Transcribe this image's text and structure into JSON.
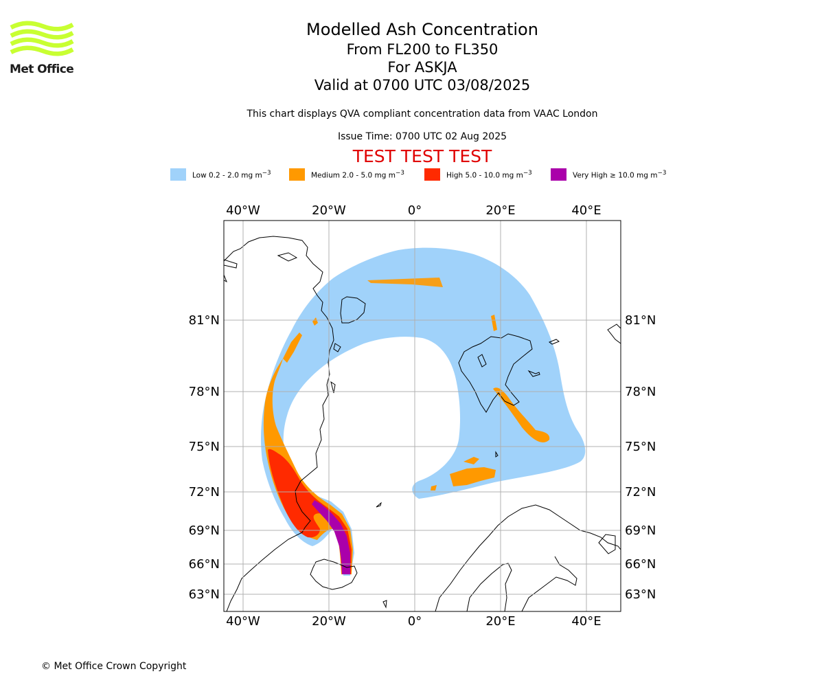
{
  "logo": {
    "text": "Met Office",
    "colors": {
      "waves": "#c8ff32",
      "text": "#1c1c1c"
    }
  },
  "header": {
    "title": "Modelled Ash Concentration",
    "flight_levels": "From FL200 to FL350",
    "volcano": "For ASKJA",
    "valid_time": "Valid at 0700 UTC 03/08/2025",
    "description": "This chart displays QVA compliant concentration data from VAAC London",
    "issue_time": "Issue Time: 0700 UTC 02 Aug 2025",
    "test_banner": "TEST TEST TEST"
  },
  "legend": [
    {
      "label": "Low 0.2 - 2.0 mg m",
      "color": "#a0d2fa"
    },
    {
      "label": "Medium 2.0 - 5.0 mg m",
      "color": "#ff9900"
    },
    {
      "label": "High 5.0 - 10.0 mg m",
      "color": "#ff2a00"
    },
    {
      "label": "Very High  ≥  10.0 mg m",
      "color": "#aa00aa"
    }
  ],
  "legend_unit_exponent": "−3",
  "map": {
    "lon_labels": [
      "40°W",
      "20°W",
      "0°",
      "20°E",
      "40°E"
    ],
    "lat_labels": [
      "81°N",
      "78°N",
      "75°N",
      "72°N",
      "69°N",
      "66°N",
      "63°N"
    ],
    "grid_color": "#b0b0b0",
    "coastline_color": "#000000"
  },
  "footer": {
    "copyright": "© Met Office Crown Copyright"
  }
}
